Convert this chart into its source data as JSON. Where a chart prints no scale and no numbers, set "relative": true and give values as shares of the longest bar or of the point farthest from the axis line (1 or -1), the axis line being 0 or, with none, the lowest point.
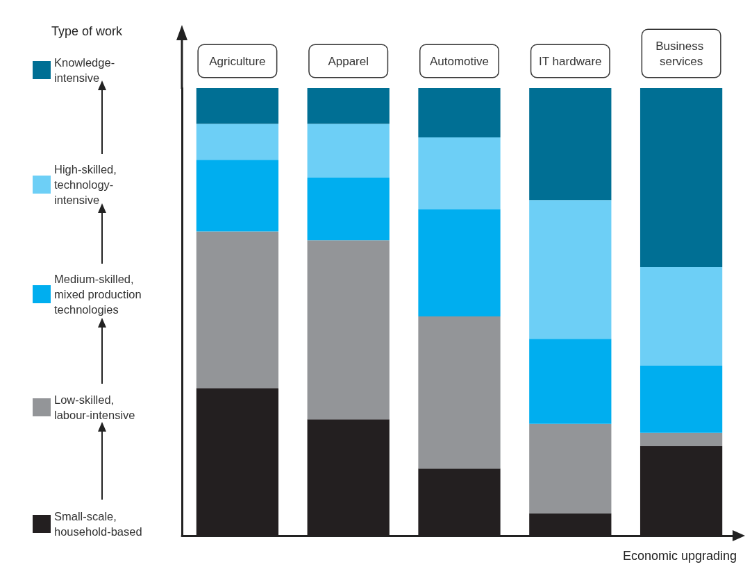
{
  "chart_data": {
    "type": "bar",
    "stacked": true,
    "relative": true,
    "legend_title": "Type of work",
    "xlabel": "Economic upgrading",
    "legend": "left",
    "categories": [
      "Agriculture",
      "Apparel",
      "Automotive",
      "IT hardware",
      "Business services"
    ],
    "series": [
      {
        "name": "Small-scale, household-based",
        "color": "#231f20",
        "values": [
          0.33,
          0.26,
          0.15,
          0.05,
          0.2
        ]
      },
      {
        "name": "Low-skilled, labour-intensive",
        "color": "#939598",
        "values": [
          0.35,
          0.4,
          0.34,
          0.2,
          0.03
        ]
      },
      {
        "name": "Medium-skilled, mixed production technologies",
        "color": "#00aeef",
        "values": [
          0.16,
          0.14,
          0.24,
          0.19,
          0.15
        ]
      },
      {
        "name": "High-skilled, technology-intensive",
        "color": "#6dcff6",
        "values": [
          0.08,
          0.12,
          0.16,
          0.31,
          0.22
        ]
      },
      {
        "name": "Knowledge-intensive",
        "color": "#006f94",
        "values": [
          0.08,
          0.08,
          0.11,
          0.25,
          0.4
        ]
      }
    ]
  }
}
